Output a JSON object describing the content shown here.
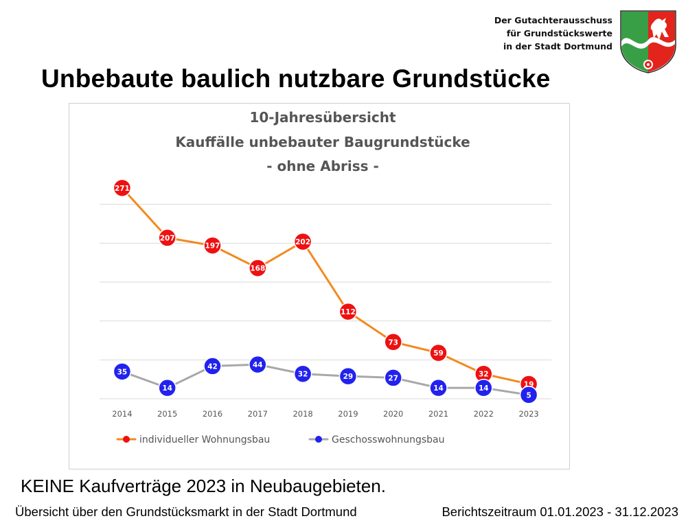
{
  "header": {
    "org_line1": "Der Gutachterausschuss",
    "org_line2": "für Grundstückswerte",
    "org_line3": "in der Stadt Dortmund",
    "crest_icon": "nrw-coat-of-arms-icon"
  },
  "slide": {
    "title": "Unbebaute baulich nutzbare Grundstücke",
    "note": "KEINE Kaufverträge 2023 in Neubaugebieten."
  },
  "footer": {
    "left": "Übersicht über den Grundstücksmarkt in der Stadt Dortmund",
    "right": "Berichtszeitraum 01.01.2023 - 31.12.2023"
  },
  "chart_data": {
    "type": "line",
    "title_lines": [
      "10-Jahresübersicht",
      "Kauffälle unbebauter Baugrundstücke",
      "- ohne Abriss -"
    ],
    "xlabel": "",
    "ylabel": "",
    "x": [
      "2014",
      "2015",
      "2016",
      "2017",
      "2018",
      "2019",
      "2020",
      "2021",
      "2022",
      "2023"
    ],
    "ylim": [
      0,
      300
    ],
    "y_gridlines": [
      0,
      50,
      100,
      150,
      200,
      250
    ],
    "y_tick_labels_shown": false,
    "grid": true,
    "legend_position": "bottom",
    "data_labels": true,
    "series": [
      {
        "name": "individueller Wohnungsbau",
        "values": [
          271,
          207,
          197,
          168,
          202,
          112,
          73,
          59,
          32,
          19
        ],
        "line_color": "#f28a1e",
        "marker_color": "#ee1111"
      },
      {
        "name": "Geschosswohnungsbau",
        "values": [
          35,
          14,
          42,
          44,
          32,
          29,
          27,
          14,
          14,
          5
        ],
        "line_color": "#a8a8a8",
        "marker_color": "#2222ee"
      }
    ]
  }
}
